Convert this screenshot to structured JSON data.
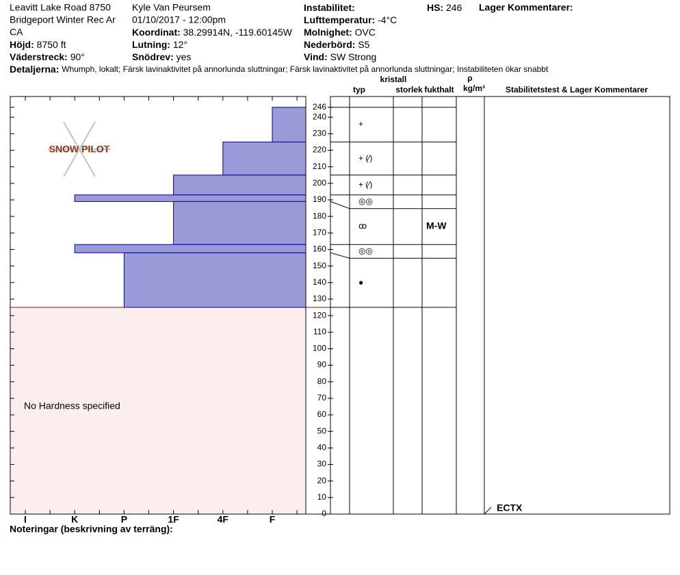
{
  "header": {
    "columns": [
      [
        "Leavitt Lake Road 8750",
        "Bridgeport Winter Rec Ar",
        "CA",
        {
          "label": "Höjd:",
          "value": "8750 ft"
        },
        {
          "label": "Väderstreck:",
          "value": "90°"
        }
      ],
      [
        "Kyle Van Peursem",
        "01/10/2017 - 12:00pm",
        {
          "label": "Koordinat:",
          "value": "38.29914N, -119.60145W"
        },
        {
          "label": "Lutning:",
          "value": "12°"
        },
        {
          "label": "Snödrev:",
          "value": "yes"
        }
      ],
      [
        {
          "label": "Instabilitet:"
        },
        {
          "label": "Lufttemperatur:",
          "value": "-4°C"
        },
        {
          "label": "Molnighet:",
          "value": "OVC"
        },
        {
          "label": "Nederbörd:",
          "value": "S5"
        },
        {
          "label": "Vind:",
          "value": "SW Strong"
        }
      ]
    ],
    "hs": {
      "label": "HS:",
      "value": "246"
    },
    "layer_comments": "Lager Kommentarer:",
    "details": {
      "label": "Detaljerna:",
      "value": "Whumph, lokalt;  Färsk lavinaktivitet på annorlunda sluttningar;  Färsk lavinaktivitet på annorlunda sluttningar;  Instabiliteten ökar snabbt"
    }
  },
  "logo": "SNOW PILOT",
  "chart_data": {
    "type": "snow-profile",
    "ylim": [
      0,
      252.5
    ],
    "yticks": [
      0,
      10,
      20,
      30,
      40,
      50,
      60,
      70,
      80,
      90,
      100,
      110,
      120,
      130,
      140,
      150,
      160,
      170,
      180,
      190,
      200,
      210,
      220,
      230,
      240,
      246
    ],
    "hardness_scale": [
      "I",
      "K",
      "P",
      "1F",
      "4F",
      "F"
    ],
    "layers": [
      {
        "top": 246,
        "bottom": 225,
        "hardness": "F",
        "grain": "+"
      },
      {
        "top": 225,
        "bottom": 205,
        "hardness": "4F",
        "grain": "+ (⁄)"
      },
      {
        "top": 205,
        "bottom": 193,
        "hardness": "1F",
        "grain": "+ (⁄)"
      },
      {
        "top": 193,
        "bottom": 189,
        "hardness": "K",
        "grain": "◎◎"
      },
      {
        "top": 189,
        "bottom": 163,
        "hardness": "1F",
        "grain": "ꝏ",
        "wetness": "M-W"
      },
      {
        "top": 163,
        "bottom": 158,
        "hardness": "K",
        "grain": "◎◎"
      },
      {
        "top": 158,
        "bottom": 125,
        "hardness": "P",
        "grain": "●"
      }
    ],
    "no_hardness": "No Hardness specified",
    "columns": {
      "kristall": "kristall",
      "typ": "typ",
      "storlek": "storlek",
      "fukthalt": "fukthalt",
      "rho": "ρ",
      "density_unit": "kg/m³",
      "stability": "Stabilitetstest & Lager Kommentarer"
    },
    "stability_tests": [
      {
        "label": "ECTX",
        "depth": 0
      }
    ],
    "bar_color": "#9a9ad8"
  },
  "footer": "Noteringar (beskrivning av terräng):"
}
